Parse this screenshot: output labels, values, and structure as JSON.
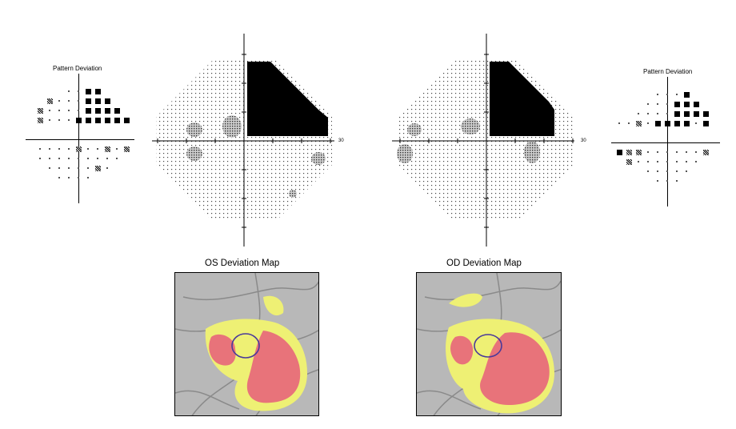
{
  "left_pattern": {
    "title": "Pattern Deviation"
  },
  "right_pattern": {
    "title": "Pattern Deviation"
  },
  "left_field": {
    "scale_label": "30"
  },
  "right_field": {
    "scale_label": "30"
  },
  "os_map": {
    "title": "OS Deviation Map"
  },
  "od_map": {
    "title": "OD Deviation Map"
  },
  "colors": {
    "defect_red": "#e8737a",
    "border_yellow": "#eef074",
    "retina_gray": "#b8b8b8",
    "disc_outline": "#4a3a9a"
  }
}
